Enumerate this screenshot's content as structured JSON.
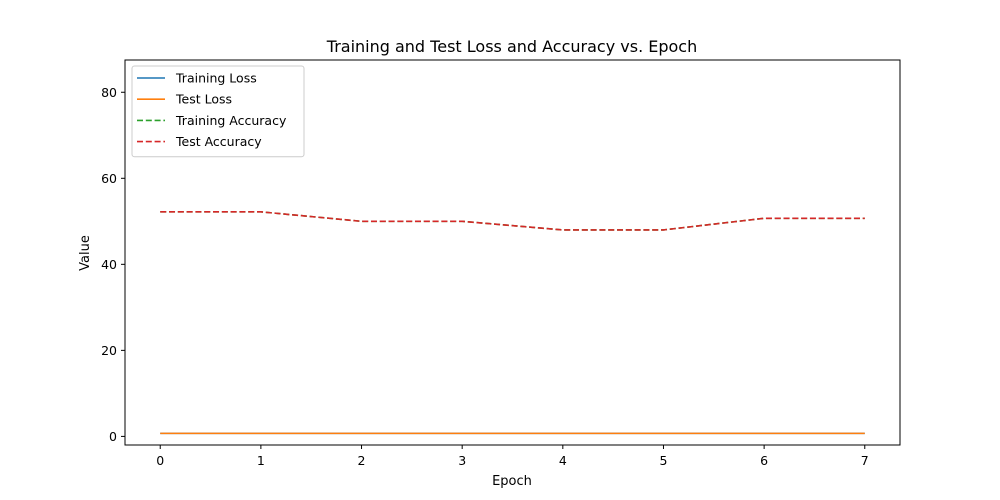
{
  "chart_data": {
    "type": "line",
    "title": "Training and Test Loss and Accuracy vs. Epoch",
    "xlabel": "Epoch",
    "ylabel": "Value",
    "x": [
      0,
      1,
      2,
      3,
      4,
      5,
      6,
      7
    ],
    "xlim": [
      -0.35,
      7.35
    ],
    "ylim": [
      -2.0,
      87.5
    ],
    "xticks": [
      0,
      1,
      2,
      3,
      4,
      5,
      6,
      7
    ],
    "yticks": [
      0,
      20,
      40,
      60,
      80
    ],
    "grid": false,
    "legend_position": "top-left",
    "series": [
      {
        "name": "Training Loss",
        "color": "#1f77b4",
        "style": "solid",
        "values": [
          0.7,
          0.7,
          0.7,
          0.7,
          0.7,
          0.7,
          0.7,
          0.7
        ]
      },
      {
        "name": "Test Loss",
        "color": "#ff7f0e",
        "style": "solid",
        "values": [
          0.7,
          0.7,
          0.7,
          0.7,
          0.7,
          0.7,
          0.7,
          0.7
        ]
      },
      {
        "name": "Training Accuracy",
        "color": "#2ca02c",
        "style": "dashed",
        "values": [
          52.2,
          52.2,
          50.0,
          50.0,
          48.0,
          48.0,
          50.7,
          50.7
        ]
      },
      {
        "name": "Test Accuracy",
        "color": "#d62728",
        "style": "dashed",
        "values": [
          52.2,
          52.2,
          50.0,
          50.0,
          48.0,
          48.0,
          50.7,
          50.7
        ]
      }
    ]
  }
}
